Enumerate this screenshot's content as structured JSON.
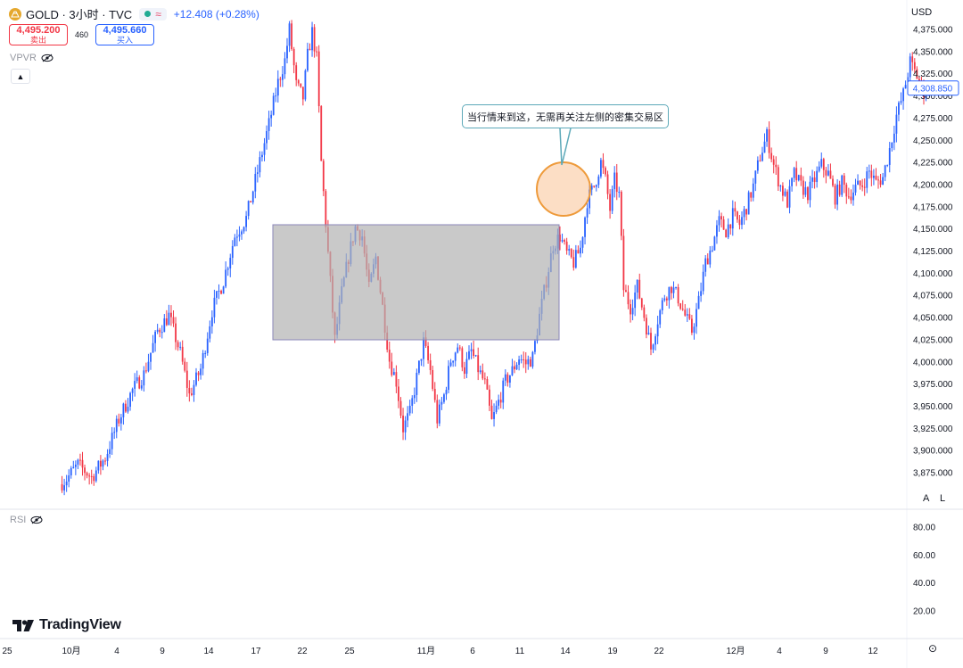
{
  "header": {
    "symbol": "GOLD · 3小时 · TVC",
    "change": "+12.408 (+0.28%)",
    "sell": {
      "value": "4,495.200",
      "label": "卖出"
    },
    "spread": "460",
    "buy": {
      "value": "4,495.660",
      "label": "买入"
    },
    "brand_color": "#e5a82e"
  },
  "indicators": {
    "vpvr": "VPVR",
    "rsi": "RSI"
  },
  "currency": "USD",
  "scale_buttons": {
    "auto": "A",
    "log": "L"
  },
  "logo": "TradingView",
  "annotation": {
    "text": "当行情来到这，无需再关注左侧的密集交易区"
  },
  "chart_data": [
    {
      "type": "candlestick",
      "title": "",
      "ylabel": "",
      "ylim": [
        3850,
        4380
      ],
      "y_ticks": [
        "4,375.000",
        "4,350.000",
        "4,325.000",
        "4,300.000",
        "4,275.000",
        "4,250.000",
        "4,225.000",
        "4,200.000",
        "4,175.000",
        "4,150.000",
        "4,125.000",
        "4,100.000",
        "4,075.000",
        "4,050.000",
        "4,025.000",
        "4,000.000",
        "3,975.000",
        "3,950.000",
        "3,925.000",
        "3,900.000",
        "3,875.000"
      ],
      "last_price_label": "4,308.850",
      "last_price": 4308.85,
      "x_ticks": [
        "25",
        "10月",
        "4",
        "9",
        "14",
        "17",
        "22",
        "25",
        "11月",
        "6",
        "11",
        "14",
        "19",
        "22",
        "12月",
        "4",
        "9",
        "12"
      ],
      "up_color": "#2962ff",
      "down_color": "#f23645",
      "close_path": [
        [
          0,
          3862
        ],
        [
          3,
          3868
        ],
        [
          8,
          3884
        ],
        [
          14,
          3870
        ],
        [
          20,
          3892
        ],
        [
          26,
          3935
        ],
        [
          32,
          3968
        ],
        [
          37,
          3986
        ],
        [
          43,
          4035
        ],
        [
          48,
          4052
        ],
        [
          53,
          4010
        ],
        [
          57,
          3962
        ],
        [
          62,
          3992
        ],
        [
          67,
          4058
        ],
        [
          72,
          4092
        ],
        [
          77,
          4142
        ],
        [
          82,
          4162
        ],
        [
          87,
          4215
        ],
        [
          92,
          4268
        ],
        [
          96,
          4315
        ],
        [
          99,
          4340
        ],
        [
          101,
          4375
        ],
        [
          104,
          4312
        ],
        [
          107,
          4298
        ],
        [
          109,
          4345
        ],
        [
          111,
          4372
        ],
        [
          113,
          4342
        ],
        [
          115,
          4225
        ],
        [
          118,
          4122
        ],
        [
          121,
          4025
        ],
        [
          124,
          4078
        ],
        [
          127,
          4118
        ],
        [
          130,
          4152
        ],
        [
          133,
          4142
        ],
        [
          136,
          4082
        ],
        [
          139,
          4118
        ],
        [
          142,
          4062
        ],
        [
          145,
          4002
        ],
        [
          148,
          3978
        ],
        [
          151,
          3925
        ],
        [
          154,
          3942
        ],
        [
          157,
          3982
        ],
        [
          160,
          4022
        ],
        [
          163,
          3990
        ],
        [
          166,
          3935
        ],
        [
          169,
          3962
        ],
        [
          172,
          4002
        ],
        [
          175,
          4018
        ],
        [
          178,
          3992
        ],
        [
          181,
          4012
        ],
        [
          184,
          3992
        ],
        [
          187,
          3975
        ],
        [
          190,
          3932
        ],
        [
          193,
          3955
        ],
        [
          196,
          3978
        ],
        [
          199,
          3990
        ],
        [
          202,
          4005
        ],
        [
          205,
          3998
        ],
        [
          208,
          4005
        ],
        [
          211,
          4052
        ],
        [
          214,
          4092
        ],
        [
          217,
          4132
        ],
        [
          220,
          4142
        ],
        [
          223,
          4122
        ],
        [
          226,
          4112
        ],
        [
          229,
          4128
        ],
        [
          232,
          4182
        ],
        [
          235,
          4198
        ],
        [
          238,
          4225
        ],
        [
          240,
          4205
        ],
        [
          242,
          4172
        ],
        [
          244,
          4205
        ],
        [
          246,
          4188
        ],
        [
          248,
          4082
        ],
        [
          251,
          4062
        ],
        [
          254,
          4085
        ],
        [
          257,
          4052
        ],
        [
          260,
          4015
        ],
        [
          263,
          4048
        ],
        [
          266,
          4075
        ],
        [
          269,
          4085
        ],
        [
          272,
          4072
        ],
        [
          275,
          4052
        ],
        [
          278,
          4035
        ],
        [
          281,
          4068
        ],
        [
          284,
          4112
        ],
        [
          287,
          4132
        ],
        [
          290,
          4158
        ],
        [
          293,
          4148
        ],
        [
          296,
          4165
        ],
        [
          299,
          4155
        ],
        [
          302,
          4175
        ],
        [
          305,
          4198
        ],
        [
          308,
          4232
        ],
        [
          311,
          4255
        ],
        [
          314,
          4222
        ],
        [
          317,
          4198
        ],
        [
          320,
          4180
        ],
        [
          323,
          4212
        ],
        [
          326,
          4198
        ],
        [
          329,
          4190
        ],
        [
          332,
          4206
        ],
        [
          335,
          4222
        ],
        [
          338,
          4212
        ],
        [
          341,
          4186
        ],
        [
          344,
          4202
        ],
        [
          347,
          4188
        ],
        [
          350,
          4196
        ],
        [
          353,
          4200
        ],
        [
          356,
          4215
        ],
        [
          359,
          4202
        ],
        [
          362,
          4208
        ],
        [
          365,
          4240
        ],
        [
          368,
          4278
        ],
        [
          371,
          4302
        ],
        [
          374,
          4338
        ],
        [
          377,
          4322
        ],
        [
          380,
          4305
        ],
        [
          382,
          4309
        ]
      ]
    },
    {
      "type": "line",
      "title": "RSI",
      "ylim": [
        10,
        90
      ],
      "y_ticks": [
        "80.00",
        "60.00",
        "40.00",
        "20.00"
      ]
    }
  ]
}
